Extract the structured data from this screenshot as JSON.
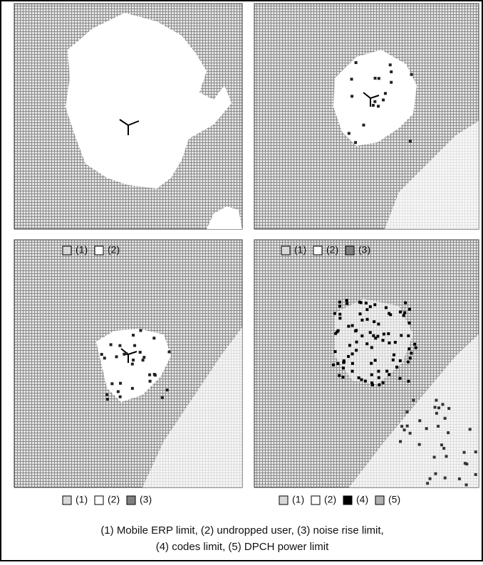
{
  "panels": [
    {
      "legend": [
        {
          "label": "(1)",
          "swatch": "#d8d8d8"
        },
        {
          "label": "(2)",
          "swatch": "#ffffff"
        }
      ]
    },
    {
      "legend": [
        {
          "label": "(1)",
          "swatch": "#d8d8d8"
        },
        {
          "label": "(2)",
          "swatch": "#ffffff"
        },
        {
          "label": "(3)",
          "swatch": "#808080"
        }
      ]
    },
    {
      "legend": [
        {
          "label": "(1)",
          "swatch": "#d8d8d8"
        },
        {
          "label": "(2)",
          "swatch": "#ffffff"
        },
        {
          "label": "(3)",
          "swatch": "#808080"
        }
      ]
    },
    {
      "legend": [
        {
          "label": "(1)",
          "swatch": "#d8d8d8"
        },
        {
          "label": "(2)",
          "swatch": "#ffffff"
        },
        {
          "label": "(4)",
          "swatch": "#000000"
        },
        {
          "label": "(5)",
          "swatch": "#b0b0b0"
        }
      ]
    }
  ],
  "caption": [
    "(1) Mobile ERP limit, (2) undropped user, (3) noise rise limit,",
    "(4) codes limit, (5) DPCH power limit"
  ]
}
